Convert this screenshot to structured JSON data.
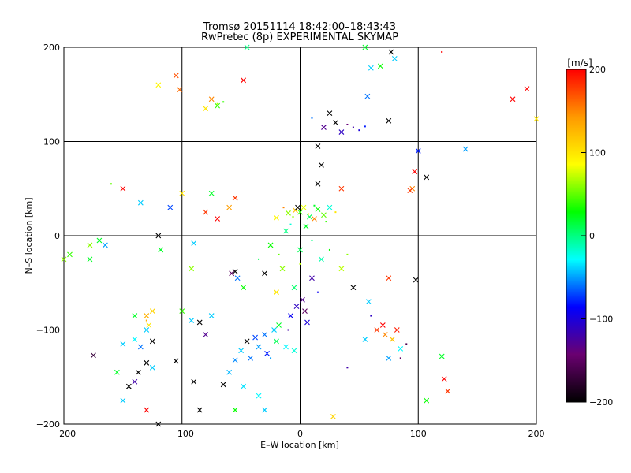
{
  "chart_data": {
    "type": "scatter",
    "title": "Tromsø 20151114 18:42:00–18:43:43",
    "subtitle": "RwPretec (8p) EXPERIMENTAL SKYMAP",
    "xlabel": "E–W location [km]",
    "ylabel": "N–S location [km]",
    "xlim": [
      -200,
      200
    ],
    "ylim": [
      -200,
      200
    ],
    "x_ticks": [
      "−200",
      "−100",
      "0",
      "100",
      "200"
    ],
    "y_ticks": [
      "−200",
      "−100",
      "0",
      "100",
      "200"
    ],
    "grid": true,
    "colorbar": {
      "label": "[m/s]",
      "range": [
        -200,
        200
      ],
      "ticks": [
        "200",
        "100",
        "0",
        "−100",
        "−200"
      ],
      "colors": [
        "#000000",
        "#6a0070",
        "#0000ff",
        "#00ffff",
        "#00ff00",
        "#ffff00",
        "#ff9900",
        "#ff0000"
      ]
    },
    "points": [
      {
        "x": 0,
        "y": 25,
        "v": 40,
        "m": "x"
      },
      {
        "x": 3,
        "y": 30,
        "v": 80,
        "m": "x"
      },
      {
        "x": -4,
        "y": 27,
        "v": 120,
        "m": "x"
      },
      {
        "x": 8,
        "y": 20,
        "v": 10,
        "m": "x"
      },
      {
        "x": -10,
        "y": 24,
        "v": 60,
        "m": "x"
      },
      {
        "x": 15,
        "y": 28,
        "v": 30,
        "m": "x"
      },
      {
        "x": 20,
        "y": 22,
        "v": 50,
        "m": "x"
      },
      {
        "x": -2,
        "y": 30,
        "v": -200,
        "m": "x"
      },
      {
        "x": 12,
        "y": 18,
        "v": 150,
        "m": "x"
      },
      {
        "x": -20,
        "y": 19,
        "v": 90,
        "m": "x"
      },
      {
        "x": 25,
        "y": 30,
        "v": -20,
        "m": "x"
      },
      {
        "x": 5,
        "y": 10,
        "v": 20,
        "m": "x"
      },
      {
        "x": -12,
        "y": 5,
        "v": 0,
        "m": "x"
      },
      {
        "x": 0,
        "y": -15,
        "v": 10,
        "m": "x"
      },
      {
        "x": 18,
        "y": -25,
        "v": -10,
        "m": "x"
      },
      {
        "x": -25,
        "y": -10,
        "v": 30,
        "m": "x"
      },
      {
        "x": -30,
        "y": -40,
        "v": -200,
        "m": "x"
      },
      {
        "x": -15,
        "y": -35,
        "v": 60,
        "m": "x"
      },
      {
        "x": 10,
        "y": -45,
        "v": -120,
        "m": "x"
      },
      {
        "x": 35,
        "y": -35,
        "v": 70,
        "m": "x"
      },
      {
        "x": -5,
        "y": -55,
        "v": 5,
        "m": "x"
      },
      {
        "x": -20,
        "y": -60,
        "v": 100,
        "m": "x"
      },
      {
        "x": 2,
        "y": -68,
        "v": -130,
        "m": "x"
      },
      {
        "x": -3,
        "y": -75,
        "v": -110,
        "m": "x"
      },
      {
        "x": 4,
        "y": -80,
        "v": -150,
        "m": "x"
      },
      {
        "x": -8,
        "y": -85,
        "v": -90,
        "m": "x"
      },
      {
        "x": 6,
        "y": -92,
        "v": -100,
        "m": "x"
      },
      {
        "x": -18,
        "y": -95,
        "v": 20,
        "m": "x"
      },
      {
        "x": -22,
        "y": -100,
        "v": -40,
        "m": "x"
      },
      {
        "x": -30,
        "y": -105,
        "v": -60,
        "m": "x"
      },
      {
        "x": -38,
        "y": -108,
        "v": -70,
        "m": "x"
      },
      {
        "x": -45,
        "y": -112,
        "v": -200,
        "m": "x"
      },
      {
        "x": -35,
        "y": -118,
        "v": -50,
        "m": "x"
      },
      {
        "x": -28,
        "y": -125,
        "v": -80,
        "m": "x"
      },
      {
        "x": -42,
        "y": -130,
        "v": -60,
        "m": "x"
      },
      {
        "x": -50,
        "y": -122,
        "v": -40,
        "m": "x"
      },
      {
        "x": -55,
        "y": -132,
        "v": -55,
        "m": "x"
      },
      {
        "x": -20,
        "y": -112,
        "v": 10,
        "m": "x"
      },
      {
        "x": -12,
        "y": -118,
        "v": -30,
        "m": "x"
      },
      {
        "x": -5,
        "y": -122,
        "v": -20,
        "m": "x"
      },
      {
        "x": -60,
        "y": -145,
        "v": -45,
        "m": "x"
      },
      {
        "x": -48,
        "y": -160,
        "v": -35,
        "m": "x"
      },
      {
        "x": -35,
        "y": -170,
        "v": -30,
        "m": "x"
      },
      {
        "x": -65,
        "y": -158,
        "v": -200,
        "m": "x"
      },
      {
        "x": -55,
        "y": -185,
        "v": 30,
        "m": "x"
      },
      {
        "x": -30,
        "y": -185,
        "v": -40,
        "m": "x"
      },
      {
        "x": 28,
        "y": -192,
        "v": 110,
        "m": "x"
      },
      {
        "x": 55,
        "y": -110,
        "v": -40,
        "m": "x"
      },
      {
        "x": 65,
        "y": -100,
        "v": 180,
        "m": "x"
      },
      {
        "x": 70,
        "y": -95,
        "v": 200,
        "m": "x"
      },
      {
        "x": 72,
        "y": -105,
        "v": 150,
        "m": "x"
      },
      {
        "x": 78,
        "y": -110,
        "v": 120,
        "m": "x"
      },
      {
        "x": 82,
        "y": -100,
        "v": 190,
        "m": "x"
      },
      {
        "x": 85,
        "y": -120,
        "v": -30,
        "m": "x"
      },
      {
        "x": 75,
        "y": -130,
        "v": -50,
        "m": "x"
      },
      {
        "x": 58,
        "y": -70,
        "v": -40,
        "m": "x"
      },
      {
        "x": 45,
        "y": -55,
        "v": -200,
        "m": "x"
      },
      {
        "x": 75,
        "y": -45,
        "v": 180,
        "m": "x"
      },
      {
        "x": 98,
        "y": -47,
        "v": -200,
        "m": "x"
      },
      {
        "x": 100,
        "y": 90,
        "v": -80,
        "m": "x"
      },
      {
        "x": 97,
        "y": 68,
        "v": 200,
        "m": "x"
      },
      {
        "x": 107,
        "y": 62,
        "v": -200,
        "m": "x"
      },
      {
        "x": 95,
        "y": 50,
        "v": 150,
        "m": "x"
      },
      {
        "x": 93,
        "y": 48,
        "v": 180,
        "m": "x"
      },
      {
        "x": 140,
        "y": 92,
        "v": -50,
        "m": "x"
      },
      {
        "x": 180,
        "y": 145,
        "v": 200,
        "m": "x"
      },
      {
        "x": 192,
        "y": 156,
        "v": 200,
        "m": "x"
      },
      {
        "x": 200,
        "y": 124,
        "v": 100,
        "m": "x"
      },
      {
        "x": 107,
        "y": -175,
        "v": 30,
        "m": "x"
      },
      {
        "x": 125,
        "y": -165,
        "v": 180,
        "m": "x"
      },
      {
        "x": 122,
        "y": -152,
        "v": 200,
        "m": "x"
      },
      {
        "x": 120,
        "y": -128,
        "v": 20,
        "m": "x"
      },
      {
        "x": 25,
        "y": 130,
        "v": -200,
        "m": "x"
      },
      {
        "x": 30,
        "y": 120,
        "v": -200,
        "m": "x"
      },
      {
        "x": 20,
        "y": 115,
        "v": -130,
        "m": "x"
      },
      {
        "x": 35,
        "y": 110,
        "v": -110,
        "m": "x"
      },
      {
        "x": 75,
        "y": 122,
        "v": -200,
        "m": "x"
      },
      {
        "x": 15,
        "y": 95,
        "v": -200,
        "m": "x"
      },
      {
        "x": 18,
        "y": 75,
        "v": -200,
        "m": "x"
      },
      {
        "x": 15,
        "y": 55,
        "v": -200,
        "m": "x"
      },
      {
        "x": 35,
        "y": 50,
        "v": 180,
        "m": "x"
      },
      {
        "x": 57,
        "y": 148,
        "v": -60,
        "m": "x"
      },
      {
        "x": 60,
        "y": 178,
        "v": -40,
        "m": "x"
      },
      {
        "x": 68,
        "y": 180,
        "v": 30,
        "m": "x"
      },
      {
        "x": 80,
        "y": 188,
        "v": -40,
        "m": "x"
      },
      {
        "x": 77,
        "y": 195,
        "v": -200,
        "m": "x"
      },
      {
        "x": 55,
        "y": 200,
        "v": 20,
        "m": "x"
      },
      {
        "x": -45,
        "y": 200,
        "v": 0,
        "m": "x"
      },
      {
        "x": -48,
        "y": 165,
        "v": 200,
        "m": "x"
      },
      {
        "x": -105,
        "y": 170,
        "v": 170,
        "m": "x"
      },
      {
        "x": -120,
        "y": 160,
        "v": 90,
        "m": "x"
      },
      {
        "x": -102,
        "y": 155,
        "v": 160,
        "m": "x"
      },
      {
        "x": -75,
        "y": 145,
        "v": 150,
        "m": "x"
      },
      {
        "x": -70,
        "y": 138,
        "v": 40,
        "m": "x"
      },
      {
        "x": -80,
        "y": 135,
        "v": 100,
        "m": "x"
      },
      {
        "x": -150,
        "y": 50,
        "v": 200,
        "m": "x"
      },
      {
        "x": -135,
        "y": 35,
        "v": -40,
        "m": "x"
      },
      {
        "x": -100,
        "y": 45,
        "v": 100,
        "m": "x"
      },
      {
        "x": -110,
        "y": 30,
        "v": -70,
        "m": "x"
      },
      {
        "x": -75,
        "y": 45,
        "v": 20,
        "m": "x"
      },
      {
        "x": -80,
        "y": 25,
        "v": 180,
        "m": "x"
      },
      {
        "x": -60,
        "y": 30,
        "v": 140,
        "m": "x"
      },
      {
        "x": -70,
        "y": 18,
        "v": 200,
        "m": "x"
      },
      {
        "x": -55,
        "y": 40,
        "v": 180,
        "m": "x"
      },
      {
        "x": -170,
        "y": -5,
        "v": 20,
        "m": "x"
      },
      {
        "x": -165,
        "y": -10,
        "v": -50,
        "m": "x"
      },
      {
        "x": -120,
        "y": 0,
        "v": -200,
        "m": "x"
      },
      {
        "x": -118,
        "y": -15,
        "v": 20,
        "m": "x"
      },
      {
        "x": -90,
        "y": -8,
        "v": -40,
        "m": "x"
      },
      {
        "x": -92,
        "y": -35,
        "v": 60,
        "m": "x"
      },
      {
        "x": -178,
        "y": -10,
        "v": 60,
        "m": "x"
      },
      {
        "x": -178,
        "y": -25,
        "v": 20,
        "m": "x"
      },
      {
        "x": -195,
        "y": -20,
        "v": 40,
        "m": "x"
      },
      {
        "x": -200,
        "y": -25,
        "v": 60,
        "m": "x"
      },
      {
        "x": -130,
        "y": -100,
        "v": -40,
        "m": "x"
      },
      {
        "x": -125,
        "y": -112,
        "v": -200,
        "m": "x"
      },
      {
        "x": -140,
        "y": -110,
        "v": -30,
        "m": "x"
      },
      {
        "x": -150,
        "y": -115,
        "v": -40,
        "m": "x"
      },
      {
        "x": -135,
        "y": -118,
        "v": -60,
        "m": "x"
      },
      {
        "x": -130,
        "y": -135,
        "v": -200,
        "m": "x"
      },
      {
        "x": -125,
        "y": -140,
        "v": -40,
        "m": "x"
      },
      {
        "x": -137,
        "y": -145,
        "v": -200,
        "m": "x"
      },
      {
        "x": -140,
        "y": -155,
        "v": -120,
        "m": "x"
      },
      {
        "x": -155,
        "y": -145,
        "v": 20,
        "m": "x"
      },
      {
        "x": -175,
        "y": -127,
        "v": -170,
        "m": "x"
      },
      {
        "x": -145,
        "y": -160,
        "v": -200,
        "m": "x"
      },
      {
        "x": -130,
        "y": -185,
        "v": 200,
        "m": "x"
      },
      {
        "x": -150,
        "y": -175,
        "v": -40,
        "m": "x"
      },
      {
        "x": -120,
        "y": -200,
        "v": -200,
        "m": "x"
      },
      {
        "x": -105,
        "y": -133,
        "v": -200,
        "m": "x"
      },
      {
        "x": -90,
        "y": -155,
        "v": -200,
        "m": "x"
      },
      {
        "x": -100,
        "y": -80,
        "v": 40,
        "m": "x"
      },
      {
        "x": -92,
        "y": -90,
        "v": -40,
        "m": "x"
      },
      {
        "x": -85,
        "y": -92,
        "v": -200,
        "m": "x"
      },
      {
        "x": -80,
        "y": -105,
        "v": -130,
        "m": "x"
      },
      {
        "x": -75,
        "y": -85,
        "v": -40,
        "m": "x"
      },
      {
        "x": -125,
        "y": -80,
        "v": 110,
        "m": "x"
      },
      {
        "x": -130,
        "y": -85,
        "v": 130,
        "m": "x"
      },
      {
        "x": -128,
        "y": -95,
        "v": 100,
        "m": "x"
      },
      {
        "x": -140,
        "y": -85,
        "v": 20,
        "m": "x"
      },
      {
        "x": -85,
        "y": -185,
        "v": -200,
        "m": "x"
      },
      {
        "x": -58,
        "y": -40,
        "v": -150,
        "m": "x"
      },
      {
        "x": -55,
        "y": -38,
        "v": -200,
        "m": "x"
      },
      {
        "x": -53,
        "y": -45,
        "v": -60,
        "m": "x"
      },
      {
        "x": -48,
        "y": -55,
        "v": 30,
        "m": "x"
      },
      {
        "x": 7,
        "y": 23,
        "v": 90,
        "m": "."
      },
      {
        "x": -6,
        "y": 20,
        "v": 60,
        "m": "."
      },
      {
        "x": 12,
        "y": 32,
        "v": 20,
        "m": "."
      },
      {
        "x": -14,
        "y": 30,
        "v": 150,
        "m": "."
      },
      {
        "x": 22,
        "y": 15,
        "v": 40,
        "m": "."
      },
      {
        "x": -8,
        "y": 12,
        "v": -20,
        "m": "."
      },
      {
        "x": 30,
        "y": 25,
        "v": 100,
        "m": "."
      },
      {
        "x": 10,
        "y": -5,
        "v": 0,
        "m": "."
      },
      {
        "x": -18,
        "y": -20,
        "v": 50,
        "m": "."
      },
      {
        "x": 25,
        "y": -15,
        "v": 30,
        "m": "."
      },
      {
        "x": -35,
        "y": -25,
        "v": 10,
        "m": "."
      },
      {
        "x": 40,
        "y": -20,
        "v": 60,
        "m": "."
      },
      {
        "x": 0,
        "y": -30,
        "v": 70,
        "m": "."
      },
      {
        "x": 15,
        "y": -60,
        "v": -90,
        "m": "."
      },
      {
        "x": -10,
        "y": -100,
        "v": -120,
        "m": "."
      },
      {
        "x": -25,
        "y": -130,
        "v": -50,
        "m": "."
      },
      {
        "x": 45,
        "y": 115,
        "v": -120,
        "m": "."
      },
      {
        "x": 50,
        "y": 112,
        "v": -100,
        "m": "."
      },
      {
        "x": 40,
        "y": 118,
        "v": -140,
        "m": "."
      },
      {
        "x": 55,
        "y": 116,
        "v": -80,
        "m": "."
      },
      {
        "x": 10,
        "y": 125,
        "v": -60,
        "m": "."
      },
      {
        "x": 60,
        "y": -85,
        "v": -110,
        "m": "."
      },
      {
        "x": 85,
        "y": -130,
        "v": -150,
        "m": "."
      },
      {
        "x": 90,
        "y": -115,
        "v": -160,
        "m": "."
      },
      {
        "x": 40,
        "y": -140,
        "v": -120,
        "m": "."
      },
      {
        "x": -70,
        "y": 140,
        "v": 70,
        "m": "."
      },
      {
        "x": -65,
        "y": 142,
        "v": 40,
        "m": "."
      },
      {
        "x": -130,
        "y": -90,
        "v": 130,
        "m": "."
      },
      {
        "x": -160,
        "y": 55,
        "v": 50,
        "m": "."
      },
      {
        "x": 120,
        "y": 195,
        "v": 200,
        "m": "."
      }
    ]
  }
}
